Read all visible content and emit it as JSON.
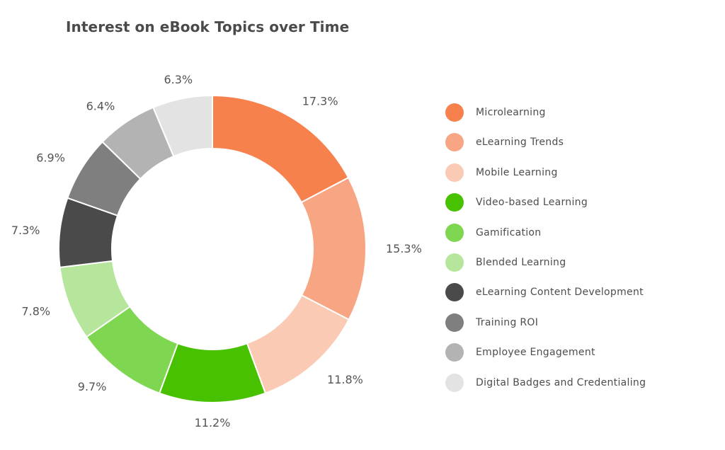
{
  "title": "Interest on eBook Topics over Time",
  "chart_data": {
    "type": "pie",
    "variant": "donut",
    "title": "Interest on eBook Topics over Time",
    "categories": [
      "Microlearning",
      "eLearning Trends",
      "Mobile Learning",
      "Video-based Learning",
      "Gamification",
      "Blended Learning",
      "eLearning Content Development",
      "Training ROI",
      "Employee Engagement",
      "Digital Badges and Credentialing"
    ],
    "values": [
      17.3,
      15.3,
      11.8,
      11.2,
      9.7,
      7.8,
      7.3,
      6.9,
      6.4,
      6.3
    ],
    "labels": [
      "17.3%",
      "15.3%",
      "11.8%",
      "11.2%",
      "9.7%",
      "7.8%",
      "7.3%",
      "6.9%",
      "6.4%",
      "6.3%"
    ],
    "colors": [
      "#f7814d",
      "#f8a583",
      "#fbcab5",
      "#48c200",
      "#7fd650",
      "#b5e69b",
      "#4a4a4a",
      "#7f7f7f",
      "#b3b3b3",
      "#e3e3e3"
    ],
    "unit": "%",
    "legend_position": "right",
    "start_angle": "top",
    "direction": "clockwise"
  },
  "legend": {
    "items": [
      {
        "label": "Microlearning",
        "color": "#f7814d"
      },
      {
        "label": "eLearning Trends",
        "color": "#f8a583"
      },
      {
        "label": "Mobile Learning",
        "color": "#fbcab5"
      },
      {
        "label": "Video-based Learning",
        "color": "#48c200"
      },
      {
        "label": "Gamification",
        "color": "#7fd650"
      },
      {
        "label": "Blended Learning",
        "color": "#b5e69b"
      },
      {
        "label": "eLearning Content Development",
        "color": "#4a4a4a"
      },
      {
        "label": "Training ROI",
        "color": "#7f7f7f"
      },
      {
        "label": "Employee Engagement",
        "color": "#b3b3b3"
      },
      {
        "label": "Digital Badges and Credentialing",
        "color": "#e3e3e3"
      }
    ]
  }
}
